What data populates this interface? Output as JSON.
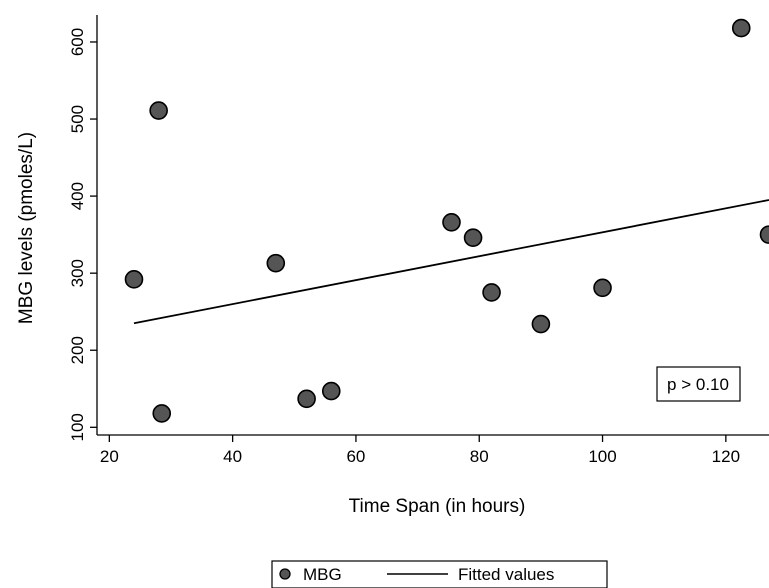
{
  "chart_data": {
    "type": "scatter",
    "xlabel": "Time Span (in hours)",
    "ylabel": "MBG levels (pmoles/L)",
    "xlim": [
      18,
      127
    ],
    "ylim": [
      90,
      635
    ],
    "x_ticks": [
      20,
      40,
      60,
      80,
      100,
      120
    ],
    "y_ticks": [
      100,
      200,
      300,
      400,
      500,
      600
    ],
    "grid": false,
    "series": [
      {
        "name": "MBG",
        "kind": "scatter",
        "color": "#555555",
        "points": [
          {
            "x": 24,
            "y": 292
          },
          {
            "x": 28,
            "y": 511
          },
          {
            "x": 28.5,
            "y": 118
          },
          {
            "x": 47,
            "y": 313
          },
          {
            "x": 52,
            "y": 137
          },
          {
            "x": 56,
            "y": 147
          },
          {
            "x": 75.5,
            "y": 366
          },
          {
            "x": 79,
            "y": 346
          },
          {
            "x": 82,
            "y": 275
          },
          {
            "x": 90,
            "y": 234
          },
          {
            "x": 100,
            "y": 281
          },
          {
            "x": 122.5,
            "y": 618
          },
          {
            "x": 127,
            "y": 350
          }
        ]
      },
      {
        "name": "Fitted values",
        "kind": "line",
        "color": "#000000",
        "points": [
          {
            "x": 24,
            "y": 235
          },
          {
            "x": 127,
            "y": 395
          }
        ]
      }
    ],
    "legend": {
      "placement": "bottom-center",
      "entries": [
        "MBG",
        "Fitted values"
      ]
    },
    "annotations": [
      {
        "text": "p > 0.10",
        "placement": "lower-right"
      }
    ]
  }
}
